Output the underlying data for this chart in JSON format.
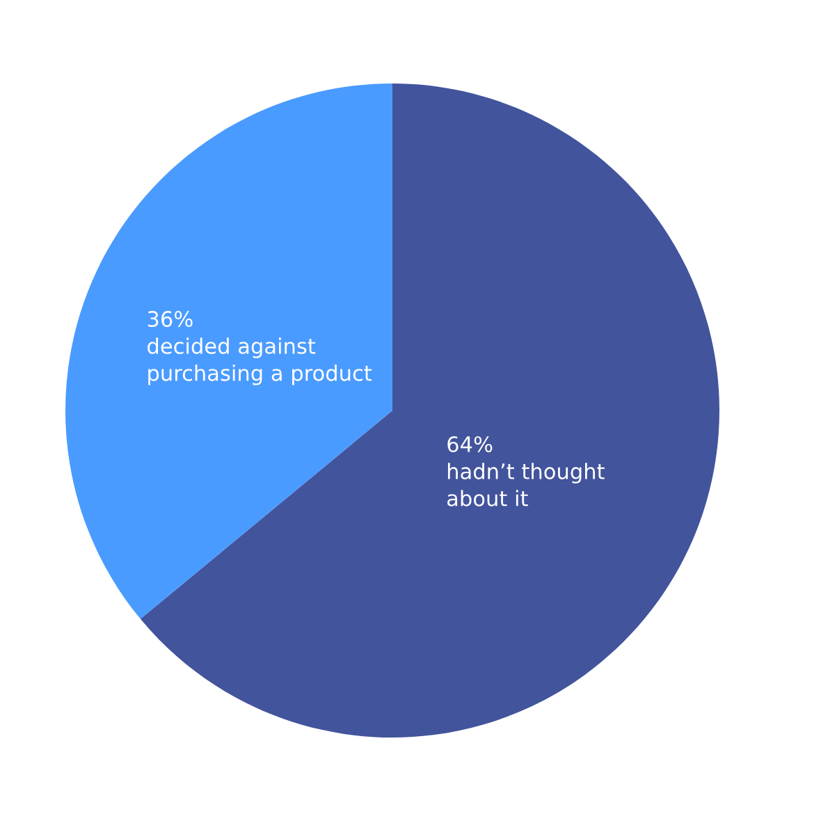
{
  "chart_data": {
    "type": "pie",
    "categories": [
      "hadn’t thought\nabout it",
      "decided against\npurchasing a product"
    ],
    "values": [
      64,
      36
    ],
    "value_labels": [
      "64%",
      "36%"
    ],
    "colors": [
      "#42549c",
      "#4a9bff"
    ]
  }
}
